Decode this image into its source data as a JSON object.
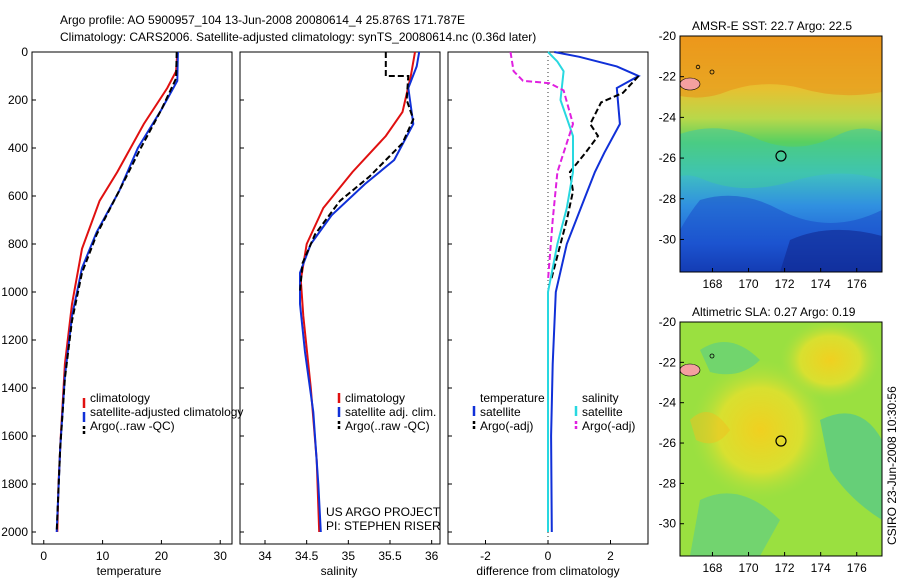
{
  "header": {
    "line1": "Argo profile: AO 5900957_104 13-Jun-2008 20080614_4 25.876S 171.787E",
    "line2": "Climatology: CARS2006. Satellite-adjusted climatology: synTS_20080614.nc (0.36d later)"
  },
  "footer": {
    "project_line1": "US ARGO PROJECT",
    "project_line2": "PI: STEPHEN RISER",
    "stamp": "CSIRO 23-Jun-2008 10:30:56"
  },
  "colors": {
    "climatology": "#e01010",
    "satellite": "#1030d8",
    "argo": "#000000",
    "sat_salinity": "#28d8e0",
    "argo_salinity": "#e020e0"
  },
  "chart_data": [
    {
      "type": "line",
      "xlabel": "temperature",
      "xlim": [
        -2,
        32
      ],
      "ylim": [
        0,
        2050
      ],
      "yticks": [
        0,
        200,
        400,
        600,
        800,
        1000,
        1200,
        1400,
        1600,
        1800,
        2000
      ],
      "xticks": [
        0,
        10,
        20,
        30
      ],
      "legend": [
        "climatology",
        "satellite-adjusted climatology",
        "Argo(..raw -QC)"
      ],
      "series": [
        {
          "name": "climatology",
          "points": [
            [
              22.7,
              0
            ],
            [
              22.5,
              80
            ],
            [
              21,
              150
            ],
            [
              17,
              300
            ],
            [
              12.5,
              500
            ],
            [
              9.5,
              620
            ],
            [
              6.5,
              820
            ],
            [
              4.8,
              1050
            ],
            [
              3.6,
              1300
            ],
            [
              2.9,
              1600
            ],
            [
              2.5,
              1800
            ],
            [
              2.3,
              2000
            ]
          ]
        },
        {
          "name": "satellite-adjusted climatology",
          "points": [
            [
              22.8,
              0
            ],
            [
              22.7,
              120
            ],
            [
              20,
              240
            ],
            [
              16,
              400
            ],
            [
              12.8,
              580
            ],
            [
              9,
              750
            ],
            [
              6.5,
              900
            ],
            [
              4.8,
              1100
            ],
            [
              3.6,
              1350
            ],
            [
              2.8,
              1650
            ],
            [
              2.2,
              2000
            ]
          ]
        },
        {
          "name": "Argo(..raw -QC)",
          "points": [
            [
              22.6,
              0
            ],
            [
              22.5,
              110
            ],
            [
              20,
              240
            ],
            [
              16.5,
              400
            ],
            [
              13,
              570
            ],
            [
              9,
              760
            ],
            [
              6.5,
              920
            ],
            [
              4.8,
              1120
            ],
            [
              3.6,
              1360
            ],
            [
              2.8,
              1650
            ],
            [
              2.2,
              2000
            ]
          ]
        }
      ]
    },
    {
      "type": "line",
      "xlabel": "salinity",
      "xlim": [
        33.7,
        36.1
      ],
      "ylim": [
        0,
        2050
      ],
      "xticks": [
        34,
        34.5,
        35,
        35.5,
        36
      ],
      "legend": [
        "climatology",
        "satellite adj. clim.",
        "Argo(..raw -QC)"
      ],
      "series": [
        {
          "name": "climatology",
          "points": [
            [
              35.8,
              0
            ],
            [
              35.75,
              100
            ],
            [
              35.65,
              250
            ],
            [
              35.45,
              350
            ],
            [
              35.05,
              500
            ],
            [
              34.7,
              650
            ],
            [
              34.5,
              800
            ],
            [
              34.43,
              950
            ],
            [
              34.46,
              1100
            ],
            [
              34.55,
              1400
            ],
            [
              34.62,
              1700
            ],
            [
              34.65,
              2000
            ]
          ]
        },
        {
          "name": "satellite adj. clim.",
          "points": [
            [
              35.85,
              0
            ],
            [
              35.82,
              60
            ],
            [
              35.72,
              150
            ],
            [
              35.78,
              300
            ],
            [
              35.55,
              450
            ],
            [
              35.2,
              550
            ],
            [
              34.8,
              680
            ],
            [
              34.55,
              800
            ],
            [
              34.42,
              920
            ],
            [
              34.42,
              1050
            ],
            [
              34.48,
              1250
            ],
            [
              34.58,
              1500
            ],
            [
              34.64,
              1800
            ],
            [
              34.67,
              2000
            ]
          ]
        },
        {
          "name": "Argo(..raw -QC)",
          "points": [
            [
              35.45,
              0
            ],
            [
              35.45,
              100
            ],
            [
              35.72,
              100
            ],
            [
              35.7,
              200
            ],
            [
              35.78,
              280
            ],
            [
              35.65,
              380
            ],
            [
              35.25,
              520
            ],
            [
              34.9,
              620
            ],
            [
              34.6,
              760
            ],
            [
              34.45,
              880
            ],
            [
              34.42,
              1000
            ]
          ]
        }
      ]
    },
    {
      "type": "line",
      "xlabel": "difference from climatology",
      "xlim": [
        -3.2,
        3.2
      ],
      "ylim": [
        0,
        2050
      ],
      "xticks": [
        -2,
        0,
        2
      ],
      "legend": [
        "temperature",
        "satellite",
        "Argo(-adj)",
        "salinity",
        "satellite",
        "Argo(-adj)"
      ],
      "series": [
        {
          "name": "satellite",
          "points": [
            [
              0.2,
              0
            ],
            [
              1,
              20
            ],
            [
              2.2,
              60
            ],
            [
              2.9,
              100
            ],
            [
              2.2,
              150
            ],
            [
              2.3,
              300
            ],
            [
              1.8,
              420
            ],
            [
              1.5,
              500
            ],
            [
              1.2,
              600
            ],
            [
              0.6,
              800
            ],
            [
              0.25,
              1000
            ],
            [
              0.15,
              1300
            ],
            [
              0.1,
              1600
            ],
            [
              0.12,
              2000
            ]
          ]
        },
        {
          "name": "Argo(-adj)",
          "points": [
            [
              2.9,
              100
            ],
            [
              2.4,
              170
            ],
            [
              1.7,
              210
            ],
            [
              1.35,
              300
            ],
            [
              1.6,
              350
            ],
            [
              1.2,
              420
            ],
            [
              0.7,
              500
            ],
            [
              0.8,
              580
            ],
            [
              0.6,
              700
            ],
            [
              0.4,
              800
            ],
            [
              0.1,
              950
            ]
          ]
        },
        {
          "name": "satellite",
          "points": [
            [
              0,
              0
            ],
            [
              0.3,
              40
            ],
            [
              0.5,
              80
            ],
            [
              0.4,
              200
            ],
            [
              0.8,
              350
            ],
            [
              0.8,
              500
            ],
            [
              0.6,
              650
            ],
            [
              0.3,
              800
            ],
            [
              0,
              1000
            ],
            [
              0,
              1300
            ],
            [
              0,
              1600
            ],
            [
              0,
              2000
            ]
          ]
        },
        {
          "name": "Argo(-adj)",
          "points": [
            [
              -1.2,
              0
            ],
            [
              -1.1,
              80
            ],
            [
              -0.8,
              120
            ],
            [
              0.05,
              130
            ],
            [
              0.5,
              160
            ],
            [
              0.8,
              300
            ],
            [
              0.5,
              420
            ],
            [
              0.3,
              500
            ],
            [
              0.15,
              700
            ],
            [
              0,
              950
            ]
          ]
        }
      ]
    },
    {
      "type": "heatmap",
      "title": "AMSR-E SST: 22.7 Argo: 22.5",
      "xticks": [
        168,
        170,
        172,
        174,
        176
      ],
      "yticks": [
        -20,
        -22,
        -24,
        -26,
        -28,
        -30
      ],
      "xlim": [
        166.2,
        177.4
      ],
      "ylim": [
        -31.6,
        -20
      ],
      "marker": [
        171.8,
        -25.9
      ]
    },
    {
      "type": "heatmap",
      "title": "Altimetric SLA: 0.27 Argo: 0.19",
      "xticks": [
        168,
        170,
        172,
        174,
        176
      ],
      "yticks": [
        -20,
        -22,
        -24,
        -26,
        -28,
        -30
      ],
      "xlim": [
        166.2,
        177.4
      ],
      "ylim": [
        -31.6,
        -20
      ],
      "marker": [
        171.8,
        -25.9
      ]
    }
  ]
}
